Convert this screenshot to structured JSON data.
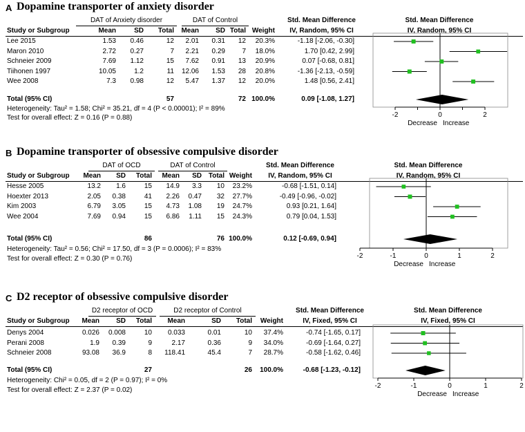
{
  "chart_data": [
    {
      "type": "forest",
      "panel_label": "A",
      "title": "Dopamine transporter of anxiety disorder",
      "group1_label": "DAT of Anxiety disorder",
      "group2_label": "DAT of Control",
      "col_study": "Study or Subgroup",
      "col_mean": "Mean",
      "col_sd": "SD",
      "col_total": "Total",
      "col_weight": "Weight",
      "col_effect_title": "Std. Mean Difference",
      "col_effect_sub": "IV, Random, 95% CI",
      "plot_title": "Std. Mean Difference",
      "plot_sub": "IV, Random, 95% CI",
      "studies": [
        {
          "name": "Lee 2015",
          "m1": "1.53",
          "sd1": "0.46",
          "n1": "12",
          "m2": "2.01",
          "sd2": "0.31",
          "n2": "12",
          "weight": "20.3%",
          "ci_text": "-1.18 [-2.06, -0.30]",
          "est": -1.18,
          "lo": -2.06,
          "hi": -0.3
        },
        {
          "name": "Maron 2010",
          "m1": "2.72",
          "sd1": "0.27",
          "n1": "7",
          "m2": "2.21",
          "sd2": "0.29",
          "n2": "7",
          "weight": "18.0%",
          "ci_text": "1.70 [0.42, 2.99]",
          "est": 1.7,
          "lo": 0.42,
          "hi": 2.99
        },
        {
          "name": "Schneier 2009",
          "m1": "7.69",
          "sd1": "1.12",
          "n1": "15",
          "m2": "7.62",
          "sd2": "0.91",
          "n2": "13",
          "weight": "20.9%",
          "ci_text": "0.07 [-0.68, 0.81]",
          "est": 0.07,
          "lo": -0.68,
          "hi": 0.81
        },
        {
          "name": "Tiihonen 1997",
          "m1": "10.05",
          "sd1": "1.2",
          "n1": "11",
          "m2": "12.06",
          "sd2": "1.53",
          "n2": "28",
          "weight": "20.8%",
          "ci_text": "-1.36 [-2.13, -0.59]",
          "est": -1.36,
          "lo": -2.13,
          "hi": -0.59
        },
        {
          "name": "Wee 2008",
          "m1": "7.3",
          "sd1": "0.98",
          "n1": "12",
          "m2": "5.47",
          "sd2": "1.37",
          "n2": "12",
          "weight": "20.0%",
          "ci_text": "1.48 [0.56, 2.41]",
          "est": 1.48,
          "lo": 0.56,
          "hi": 2.41
        }
      ],
      "total": {
        "label": "Total (95% CI)",
        "n1": "57",
        "n2": "72",
        "weight": "100.0%",
        "ci_text": "0.09 [-1.08, 1.27]",
        "est": 0.09,
        "lo": -1.08,
        "hi": 1.27
      },
      "heterogeneity": "Heterogeneity: Tau² = 1.58; Chi² = 35.21, df = 4 (P < 0.00001); I² = 89%",
      "overall_test": "Test for overall effect: Z = 0.16 (P = 0.88)",
      "axis_ticks": [
        -2,
        -1,
        0,
        1,
        2
      ],
      "axis_tick_labels": [
        "-2",
        "",
        "0",
        "",
        "2"
      ],
      "xlim": [
        -3,
        3
      ],
      "decrease_label": "Decrease",
      "increase_label": "Increase"
    },
    {
      "type": "forest",
      "panel_label": "B",
      "title": "Dopamine transporter of obsessive compulsive disorder",
      "group1_label": "DAT of OCD",
      "group2_label": "DAT of Control",
      "col_study": "Study or Subgroup",
      "col_mean": "Mean",
      "col_sd": "SD",
      "col_total": "Total",
      "col_weight": "Weight",
      "col_effect_title": "Std. Mean Difference",
      "col_effect_sub": "IV, Random, 95% CI",
      "plot_title": "Std. Mean Difference",
      "plot_sub": "IV, Random, 95% CI",
      "studies": [
        {
          "name": "Hesse 2005",
          "m1": "13.2",
          "sd1": "1.6",
          "n1": "15",
          "m2": "14.9",
          "sd2": "3.3",
          "n2": "10",
          "weight": "23.2%",
          "ci_text": "-0.68 [-1.51, 0.14]",
          "est": -0.68,
          "lo": -1.51,
          "hi": 0.14
        },
        {
          "name": "Hoexter 2013",
          "m1": "2.05",
          "sd1": "0.38",
          "n1": "41",
          "m2": "2.26",
          "sd2": "0.47",
          "n2": "32",
          "weight": "27.7%",
          "ci_text": "-0.49 [-0.96, -0.02]",
          "est": -0.49,
          "lo": -0.96,
          "hi": -0.02
        },
        {
          "name": "Kim 2003",
          "m1": "6.79",
          "sd1": "3.05",
          "n1": "15",
          "m2": "4.73",
          "sd2": "1.08",
          "n2": "19",
          "weight": "24.7%",
          "ci_text": "0.93 [0.21, 1.64]",
          "est": 0.93,
          "lo": 0.21,
          "hi": 1.64
        },
        {
          "name": "Wee 2004",
          "m1": "7.69",
          "sd1": "0.94",
          "n1": "15",
          "m2": "6.86",
          "sd2": "1.11",
          "n2": "15",
          "weight": "24.3%",
          "ci_text": "0.79 [0.04, 1.53]",
          "est": 0.79,
          "lo": 0.04,
          "hi": 1.53
        }
      ],
      "total": {
        "label": "Total (95% CI)",
        "n1": "86",
        "n2": "76",
        "weight": "100.0%",
        "ci_text": "0.12 [-0.69, 0.94]",
        "est": 0.12,
        "lo": -0.69,
        "hi": 0.94
      },
      "heterogeneity": "Heterogeneity: Tau² = 0.56; Chi² = 17.50, df = 3 (P = 0.0006); I² = 83%",
      "overall_test": "Test for overall effect: Z = 0.30 (P = 0.76)",
      "axis_ticks": [
        -2,
        -1,
        0,
        1,
        2
      ],
      "axis_tick_labels": [
        "-2",
        "-1",
        "0",
        "1",
        "2"
      ],
      "xlim": [
        -2,
        2
      ],
      "decrease_label": "Decrease",
      "increase_label": "Increase"
    },
    {
      "type": "forest",
      "panel_label": "C",
      "title": "D2 receptor of obsessive compulsive disorder",
      "group1_label": "D2 receptor of OCD",
      "group2_label": "D2 receptor of Control",
      "col_study": "Study or Subgroup",
      "col_mean": "Mean",
      "col_sd": "SD",
      "col_total": "Total",
      "col_weight": "Weight",
      "col_effect_title": "Std. Mean Difference",
      "col_effect_sub": "IV, Fixed, 95% CI",
      "plot_title": "Std. Mean Difference",
      "plot_sub": "IV, Fixed, 95% CI",
      "studies": [
        {
          "name": "Denys 2004",
          "m1": "0.026",
          "sd1": "0.008",
          "n1": "10",
          "m2": "0.033",
          "sd2": "0.01",
          "n2": "10",
          "weight": "37.4%",
          "ci_text": "-0.74 [-1.65, 0.17]",
          "est": -0.74,
          "lo": -1.65,
          "hi": 0.17
        },
        {
          "name": "Perani 2008",
          "m1": "1.9",
          "sd1": "0.39",
          "n1": "9",
          "m2": "2.17",
          "sd2": "0.36",
          "n2": "9",
          "weight": "34.0%",
          "ci_text": "-0.69 [-1.64, 0.27]",
          "est": -0.69,
          "lo": -1.64,
          "hi": 0.27
        },
        {
          "name": "Schneier 2008",
          "m1": "93.08",
          "sd1": "36.9",
          "n1": "8",
          "m2": "118.41",
          "sd2": "45.4",
          "n2": "7",
          "weight": "28.7%",
          "ci_text": "-0.58 [-1.62, 0.46]",
          "est": -0.58,
          "lo": -1.62,
          "hi": 0.46
        }
      ],
      "total": {
        "label": "Total (95% CI)",
        "n1": "27",
        "n2": "26",
        "weight": "100.0%",
        "ci_text": "-0.68 [-1.23, -0.12]",
        "est": -0.68,
        "lo": -1.23,
        "hi": -0.12
      },
      "heterogeneity": "Heterogeneity: Chi² = 0.05, df = 2 (P = 0.97); I² = 0%",
      "overall_test": "Test for overall effect: Z = 2.37 (P = 0.02)",
      "axis_ticks": [
        -2,
        -1,
        0,
        1,
        2
      ],
      "axis_tick_labels": [
        "-2",
        "-1",
        "0",
        "1",
        "2"
      ],
      "xlim": [
        -2,
        2
      ],
      "decrease_label": "Decrease",
      "increase_label": "Increase"
    }
  ],
  "colors": {
    "marker": "#21c021",
    "diamond": "#000000",
    "line": "#000000"
  }
}
